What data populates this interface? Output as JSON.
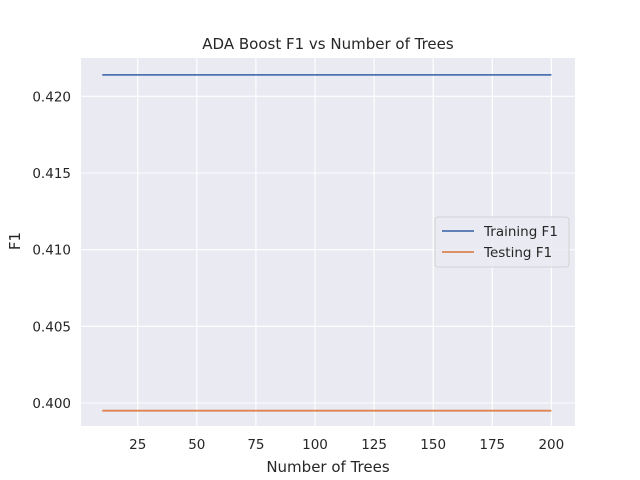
{
  "chart_data": {
    "type": "line",
    "title": "ADA Boost F1 vs Number of Trees",
    "xlabel": "Number of Trees",
    "ylabel": "F1",
    "xlim": [
      1,
      210
    ],
    "ylim": [
      0.3985,
      0.4225
    ],
    "xticks": [
      25,
      50,
      75,
      100,
      125,
      150,
      175,
      200
    ],
    "yticks": [
      0.4,
      0.405,
      0.41,
      0.415,
      0.42
    ],
    "ytick_labels": [
      "0.400",
      "0.405",
      "0.410",
      "0.415",
      "0.420"
    ],
    "grid": true,
    "legend_position": "center-right",
    "background_color": "#eaeaf2",
    "grid_color": "#ffffff",
    "series": [
      {
        "name": "Training F1",
        "color": "#4c72b0",
        "x": [
          10,
          200
        ],
        "y": [
          0.4214,
          0.4214
        ]
      },
      {
        "name": "Testing F1",
        "color": "#dd8452",
        "x": [
          10,
          200
        ],
        "y": [
          0.3995,
          0.3995
        ]
      }
    ]
  }
}
